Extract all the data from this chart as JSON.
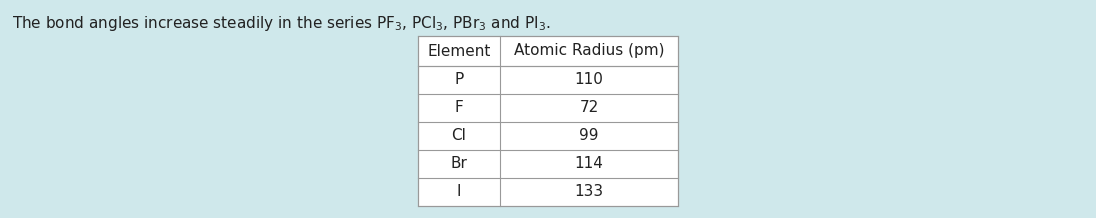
{
  "background_color": "#cfe8eb",
  "text_intro_full": "The bond angles increase steadily in the series $\\mathrm{PF_3}$, $\\mathrm{PCl_3}$, $\\mathrm{PBr_3}$ and $\\mathrm{PI_3}$.",
  "table_header": [
    "Element",
    "Atomic Radius (pm)"
  ],
  "table_rows": [
    [
      "P",
      "110"
    ],
    [
      "F",
      "72"
    ],
    [
      "Cl",
      "99"
    ],
    [
      "Br",
      "114"
    ],
    [
      "I",
      "133"
    ]
  ],
  "font_size": 11,
  "header_font_size": 11,
  "text_font_size": 11,
  "border_color": "#999999",
  "text_color": "#222222",
  "table_bg": "#ffffff",
  "fig_width": 10.96,
  "fig_height": 2.18,
  "dpi": 100
}
